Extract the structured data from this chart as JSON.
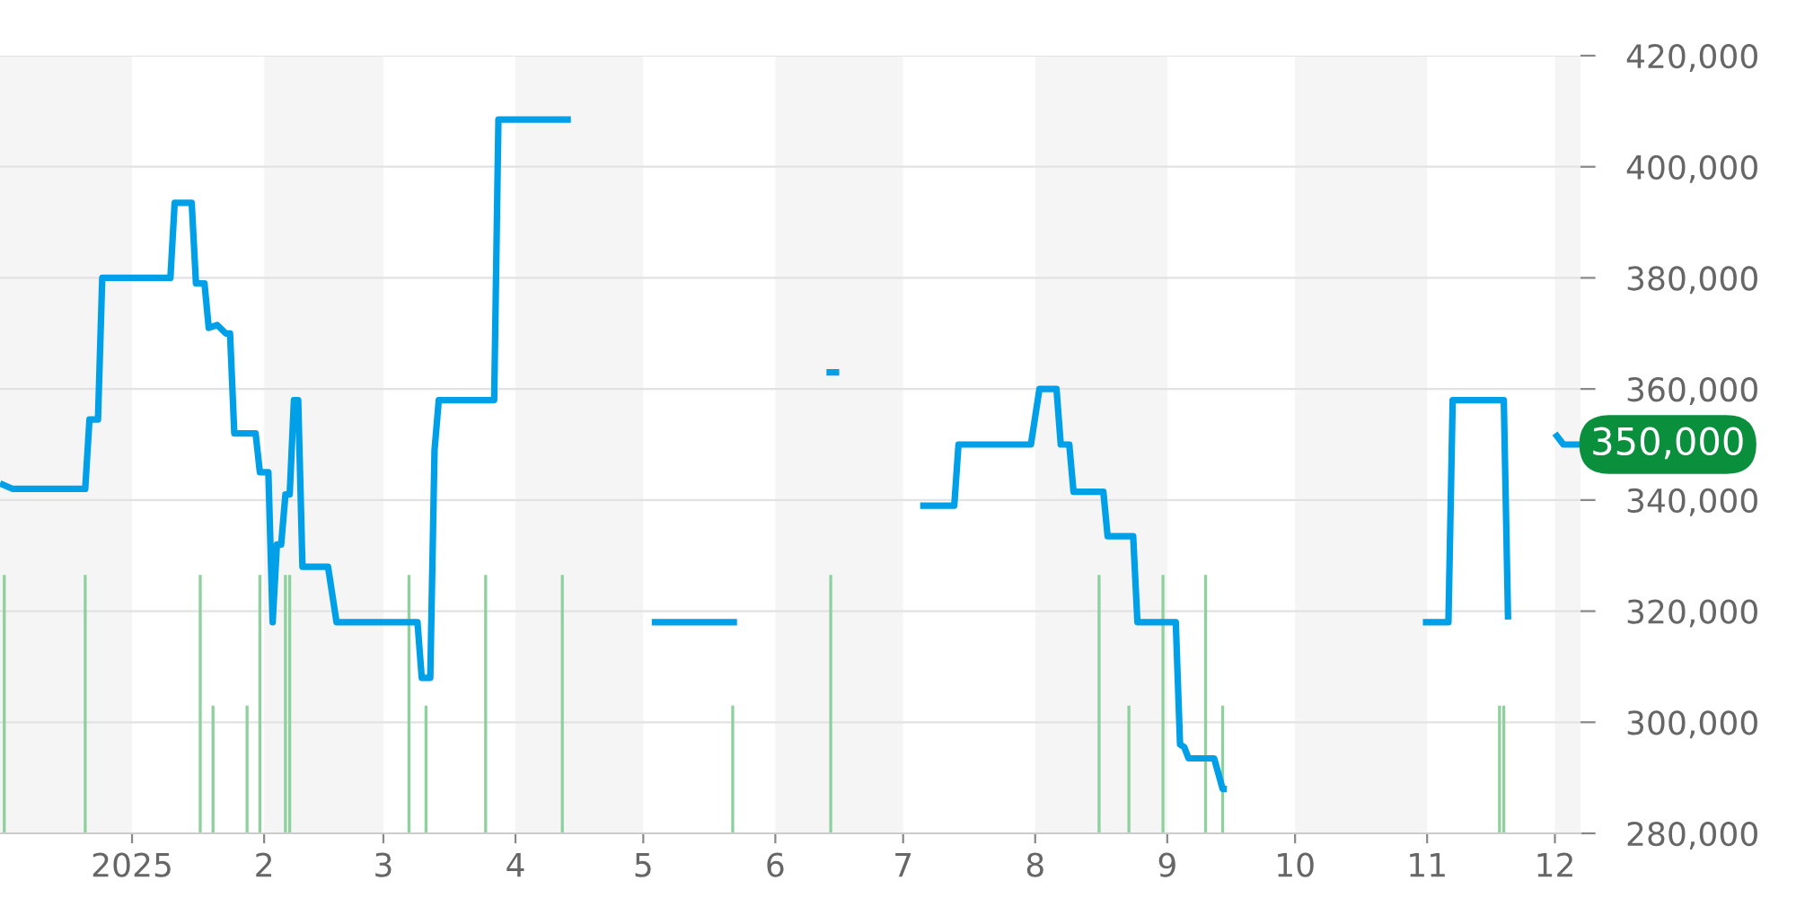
{
  "chart_data": {
    "type": "line",
    "xlim": [
      "2024-12-01",
      "2025-12-07"
    ],
    "xticks": [
      {
        "value": "2025-01-01",
        "label": "2025"
      },
      {
        "value": "2025-02-01",
        "label": "2"
      },
      {
        "value": "2025-03-01",
        "label": "3"
      },
      {
        "value": "2025-04-01",
        "label": "4"
      },
      {
        "value": "2025-05-01",
        "label": "5"
      },
      {
        "value": "2025-06-01",
        "label": "6"
      },
      {
        "value": "2025-07-01",
        "label": "7"
      },
      {
        "value": "2025-08-01",
        "label": "8"
      },
      {
        "value": "2025-09-01",
        "label": "9"
      },
      {
        "value": "2025-10-01",
        "label": "10"
      },
      {
        "value": "2025-11-01",
        "label": "11"
      },
      {
        "value": "2025-12-01",
        "label": "12"
      }
    ],
    "ylim": [
      280000,
      420000
    ],
    "yticks": [
      {
        "value": 280000,
        "label": "280,000"
      },
      {
        "value": 300000,
        "label": "300,000"
      },
      {
        "value": 320000,
        "label": "320,000"
      },
      {
        "value": 340000,
        "label": "340,000"
      },
      {
        "value": 360000,
        "label": "360,000"
      },
      {
        "value": 380000,
        "label": "380,000"
      },
      {
        "value": 400000,
        "label": "400,000"
      },
      {
        "value": 420000,
        "label": "420,000"
      }
    ],
    "grid": "y",
    "legend": false,
    "bands": [
      {
        "axis": "x",
        "from": "2024-12-01",
        "to": "2025-01-01",
        "color": "#f5f5f5"
      },
      {
        "axis": "x",
        "from": "2025-02-01",
        "to": "2025-03-01",
        "color": "#f5f5f5"
      },
      {
        "axis": "x",
        "from": "2025-04-01",
        "to": "2025-05-01",
        "color": "#f5f5f5"
      },
      {
        "axis": "x",
        "from": "2025-06-01",
        "to": "2025-07-01",
        "color": "#f5f5f5"
      },
      {
        "axis": "x",
        "from": "2025-08-01",
        "to": "2025-09-01",
        "color": "#f5f5f5"
      },
      {
        "axis": "x",
        "from": "2025-10-01",
        "to": "2025-11-01",
        "color": "#f5f5f5"
      },
      {
        "axis": "x",
        "from": "2025-12-01",
        "to": "2025-12-07",
        "color": "#f5f5f5"
      }
    ],
    "annotations": [
      {
        "text": "350,000",
        "x": "2025-12-07",
        "y": 350000
      }
    ],
    "series": [
      {
        "type": "bar",
        "color": "#8fd19e",
        "x": [
          "2024-12-02",
          "2024-12-21",
          "2025-01-17",
          "2025-01-20",
          "2025-01-28",
          "2025-01-31",
          "2025-02-06",
          "2025-02-07",
          "2025-03-07",
          "2025-03-11",
          "2025-03-25",
          "2025-04-12",
          "2025-05-22",
          "2025-06-14",
          "2025-08-16",
          "2025-08-23",
          "2025-08-31",
          "2025-09-10",
          "2025-09-14",
          "2025-11-18",
          "2025-11-19"
        ],
        "values": [
          326500,
          326500,
          326500,
          303000,
          303000,
          326500,
          326500,
          326500,
          326500,
          303000,
          326500,
          326500,
          303000,
          326500,
          326500,
          303000,
          326500,
          326500,
          303000,
          303000,
          303000
        ]
      },
      {
        "color": "#00a0e9",
        "x": [
          "2024-12-01",
          "2024-12-04",
          "2024-12-21",
          "2024-12-22",
          "2024-12-24",
          "2024-12-25",
          "2025-01-10",
          "2025-01-11",
          "2025-01-15",
          "2025-01-16",
          "2025-01-18",
          "2025-01-19",
          "2025-01-21",
          "2025-01-23",
          "2025-01-24",
          "2025-01-25",
          "2025-01-30",
          "2025-01-31",
          "2025-02-02",
          "2025-02-03",
          "2025-02-04",
          "2025-02-05",
          "2025-02-06",
          "2025-02-07",
          "2025-02-08",
          "2025-02-09",
          "2025-02-10",
          "2025-02-16",
          "2025-02-18",
          "2025-03-09",
          "2025-03-10",
          "2025-03-12",
          "2025-03-13",
          "2025-03-14",
          "2025-03-27",
          "2025-03-28",
          "2025-04-14",
          "2025-04-28",
          "2025-05-03",
          "2025-05-23",
          "2025-06-01",
          "2025-06-13",
          "2025-06-16",
          "2025-06-25",
          "2025-07-05",
          "2025-07-13",
          "2025-07-14",
          "2025-07-31",
          "2025-08-02",
          "2025-08-06",
          "2025-08-07",
          "2025-08-09",
          "2025-08-10",
          "2025-08-17",
          "2025-08-18",
          "2025-08-24",
          "2025-08-25",
          "2025-09-03",
          "2025-09-04",
          "2025-09-05",
          "2025-09-06",
          "2025-09-12",
          "2025-09-14",
          "2025-09-15",
          "2025-10-10",
          "2025-10-31",
          "2025-11-06",
          "2025-11-07",
          "2025-11-19",
          "2025-11-20",
          "2025-11-25",
          "2025-12-01",
          "2025-12-03",
          "2025-12-07"
        ],
        "values": [
          343000,
          342000,
          342000,
          354500,
          354500,
          380000,
          380000,
          393500,
          393500,
          379000,
          379000,
          371000,
          371500,
          370000,
          370000,
          352000,
          352000,
          345000,
          345000,
          318000,
          332000,
          332000,
          341000,
          341000,
          358000,
          358000,
          328000,
          328000,
          318000,
          318000,
          308000,
          308000,
          349000,
          358000,
          358000,
          408500,
          408500,
          null,
          318000,
          318000,
          null,
          363000,
          363000,
          null,
          339000,
          339000,
          350000,
          350000,
          360000,
          360000,
          350000,
          350000,
          341500,
          341500,
          333500,
          333500,
          318000,
          318000,
          296000,
          295500,
          293500,
          293500,
          288000,
          288000,
          null,
          318000,
          318000,
          358000,
          358000,
          318500,
          null,
          352000,
          350000,
          350000
        ]
      }
    ]
  }
}
